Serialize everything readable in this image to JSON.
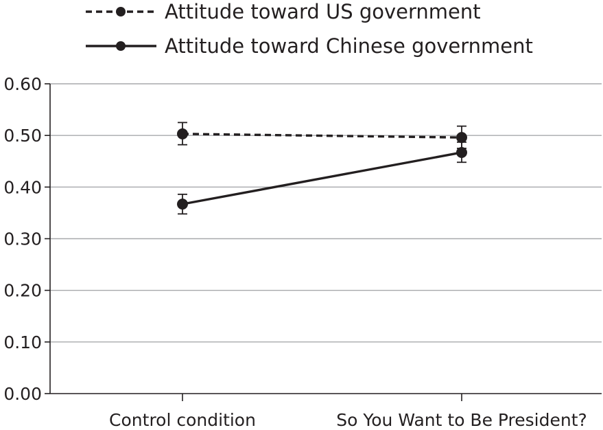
{
  "chart_data": {
    "type": "line",
    "title": "",
    "xlabel": "",
    "ylabel": "",
    "categories": [
      "Control condition",
      "So You Want to Be President?"
    ],
    "ylim": [
      0,
      0.6
    ],
    "yticks": [
      "0.00",
      "0.10",
      "0.20",
      "0.30",
      "0.40",
      "0.50",
      "0.60"
    ],
    "grid": true,
    "legend_position": "top",
    "series": [
      {
        "name": "Attitude toward US government",
        "line_style": "dashed",
        "values": [
          0.503,
          0.496
        ],
        "error": [
          [
            0.482,
            0.525
          ],
          [
            0.475,
            0.518
          ]
        ]
      },
      {
        "name": "Attitude toward Chinese government",
        "line_style": "solid",
        "values": [
          0.367,
          0.467
        ],
        "error": [
          [
            0.348,
            0.386
          ],
          [
            0.448,
            0.487
          ]
        ]
      }
    ],
    "colors": {
      "line": "#231f20",
      "grid": "#a7a9ac"
    }
  }
}
